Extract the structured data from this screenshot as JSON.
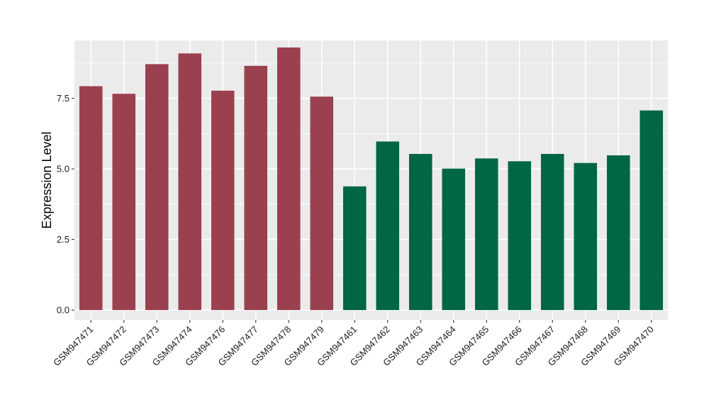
{
  "chart_data": {
    "type": "bar",
    "title": "",
    "xlabel": "",
    "ylabel": "Expression Level",
    "ylim": [
      -0.35,
      9.55
    ],
    "yticks": [
      0.0,
      2.5,
      5.0,
      7.5
    ],
    "ytick_labels": [
      "0.0",
      "2.5",
      "5.0",
      "7.5"
    ],
    "grid": true,
    "legend": "none",
    "categories": [
      "GSM947471",
      "GSM947472",
      "GSM947473",
      "GSM947474",
      "GSM947476",
      "GSM947477",
      "GSM947478",
      "GSM947479",
      "GSM947461",
      "GSM947462",
      "GSM947463",
      "GSM947464",
      "GSM947465",
      "GSM947466",
      "GSM947467",
      "GSM947468",
      "GSM947469",
      "GSM947470"
    ],
    "values": [
      7.93,
      7.66,
      8.71,
      9.09,
      7.77,
      8.65,
      9.3,
      7.56,
      4.38,
      5.97,
      5.53,
      5.01,
      5.37,
      5.27,
      5.53,
      5.21,
      5.48,
      7.07
    ],
    "group_index": [
      0,
      0,
      0,
      0,
      0,
      0,
      0,
      0,
      1,
      1,
      1,
      1,
      1,
      1,
      1,
      1,
      1,
      1
    ],
    "group_colors": [
      "#9b404f",
      "#016646"
    ],
    "panel_background": "#ebebeb",
    "grid_color": "#ffffff"
  }
}
